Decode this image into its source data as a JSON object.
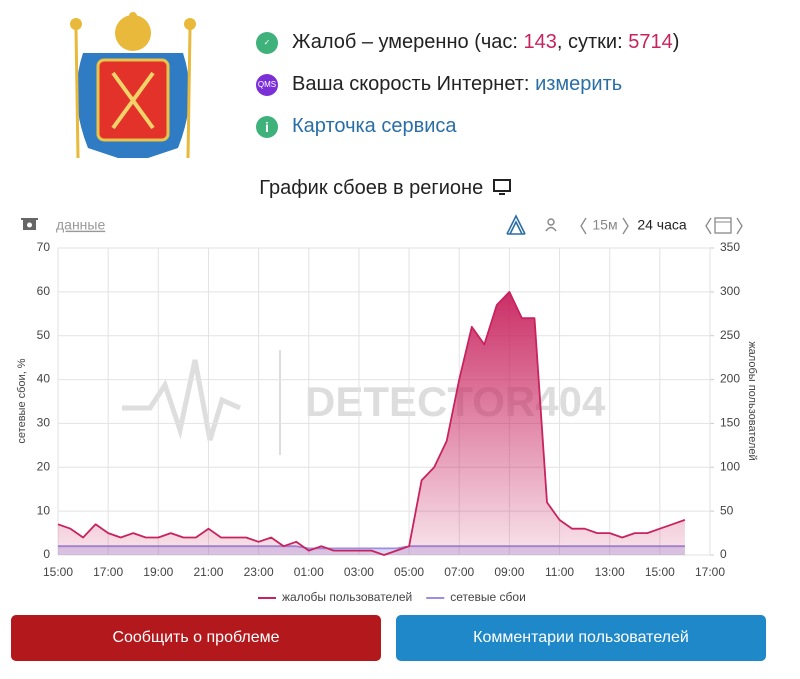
{
  "status": {
    "complaints": {
      "text": "Жалоб – умеренно (час:",
      "hour": 143,
      "sep": ", сутки:",
      "day": 5714,
      "end": ")"
    },
    "speed": {
      "icon": "QMS",
      "text": "Ваша скорость Интернет:",
      "link": "измерить"
    },
    "card": {
      "link": "Карточка сервиса"
    }
  },
  "toolbar": {
    "data_link": "данные",
    "period_short": "15м",
    "period": "24 часа"
  },
  "watermark": "DETECTOR404",
  "buttons": {
    "report": "Сообщить о проблеме",
    "comments": "Комментарии пользователей"
  },
  "chart_data": {
    "type": "line",
    "title": "График сбоев в регионе",
    "y_label": "сетевые сбои, %",
    "y2_label": "жалобы пользователей",
    "categories": [
      "15:00",
      null,
      null,
      null,
      "17:00",
      null,
      null,
      null,
      "19:00",
      null,
      null,
      null,
      "21:00",
      null,
      null,
      null,
      "23:00",
      null,
      null,
      null,
      "01:00",
      null,
      null,
      null,
      "03:00",
      null,
      null,
      null,
      "05:00",
      null,
      null,
      null,
      "07:00",
      null,
      null,
      null,
      "09:00",
      null,
      null,
      null,
      "11:00",
      null,
      null,
      null,
      "13:00",
      null,
      null,
      null,
      "15:00",
      null,
      null,
      null,
      "17:00"
    ],
    "series": [
      {
        "name": "жалобы пользователей",
        "color": "#c8235e",
        "axis": "y2",
        "area": true,
        "values": [
          35,
          30,
          20,
          35,
          25,
          20,
          25,
          20,
          20,
          25,
          20,
          20,
          30,
          20,
          20,
          20,
          15,
          20,
          10,
          15,
          5,
          10,
          5,
          5,
          5,
          5,
          0,
          5,
          10,
          85,
          100,
          130,
          200,
          260,
          240,
          285,
          300,
          270,
          270,
          60,
          40,
          30,
          30,
          25,
          25,
          20,
          25,
          25,
          30,
          35,
          40,
          null,
          null
        ]
      },
      {
        "name": "сетевые сбои",
        "color": "#9b8fe0",
        "area": true,
        "values": [
          2,
          2,
          2,
          2,
          2,
          2,
          2,
          2,
          2,
          2,
          2,
          2,
          2,
          2,
          2,
          2,
          2,
          2,
          2,
          2,
          1.5,
          1.5,
          1.5,
          1.5,
          1.5,
          1.5,
          1.5,
          1.5,
          2,
          2,
          2,
          2,
          2,
          2,
          2,
          2,
          2,
          2,
          2,
          2,
          2,
          2,
          2,
          2,
          2,
          2,
          2,
          2,
          2,
          2,
          2,
          null,
          null
        ]
      }
    ],
    "ylim": [
      0,
      70
    ],
    "yticks": [
      0,
      10,
      20,
      30,
      40,
      50,
      60,
      70
    ],
    "y2lim": [
      0,
      350
    ],
    "y2ticks": [
      0,
      50,
      100,
      150,
      200,
      250,
      300,
      350
    ],
    "grid": true,
    "legend": "bottom"
  }
}
